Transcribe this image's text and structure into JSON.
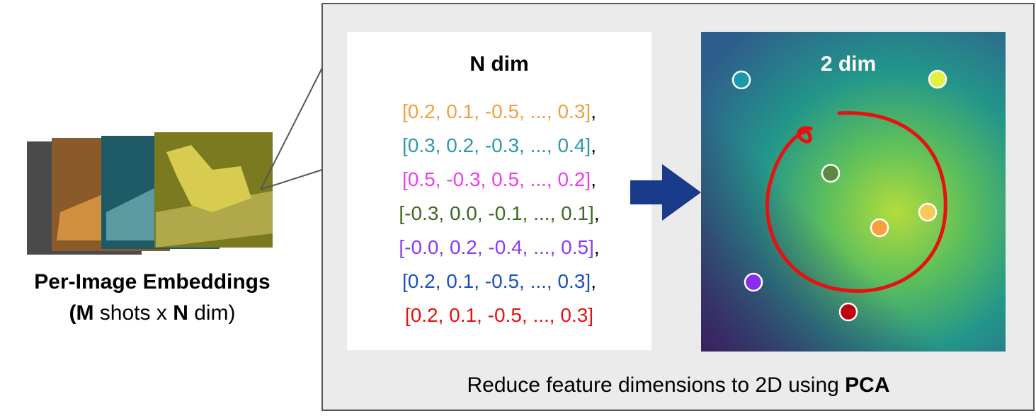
{
  "left": {
    "title": "Per-Image Embeddings",
    "subtitle": {
      "open": "(",
      "m": "M",
      "mid": " shots x ",
      "n": "N",
      "close": " dim)"
    }
  },
  "vectors": {
    "title": "N dim",
    "separator": ",",
    "rows": [
      {
        "text": "[0.2, 0.1, -0.5, ..., 0.3]",
        "color": "#f0a040"
      },
      {
        "text": "[0.3, 0.2, -0.3, ..., 0.4]",
        "color": "#2a9aa8"
      },
      {
        "text": "[0.5, -0.3, 0.5, ..., 0.2]",
        "color": "#f03cf0"
      },
      {
        "text": "[-0.3, 0.0, -0.1, ..., 0.1]",
        "color": "#3a6a20"
      },
      {
        "text": "[-0.0, 0.2, -0.4, ..., 0.5]",
        "color": "#8a3cf0"
      },
      {
        "text": "[0.2, 0.1, -0.5, ..., 0.3]",
        "color": "#1a50c0"
      },
      {
        "text": "[0.2, 0.1, -0.5, ..., 0.3]",
        "color": "#e81010"
      }
    ]
  },
  "projection": {
    "title": "2 dim"
  },
  "caption": {
    "text": "Reduce feature dimensions to 2D using ",
    "emphasis": "PCA"
  }
}
